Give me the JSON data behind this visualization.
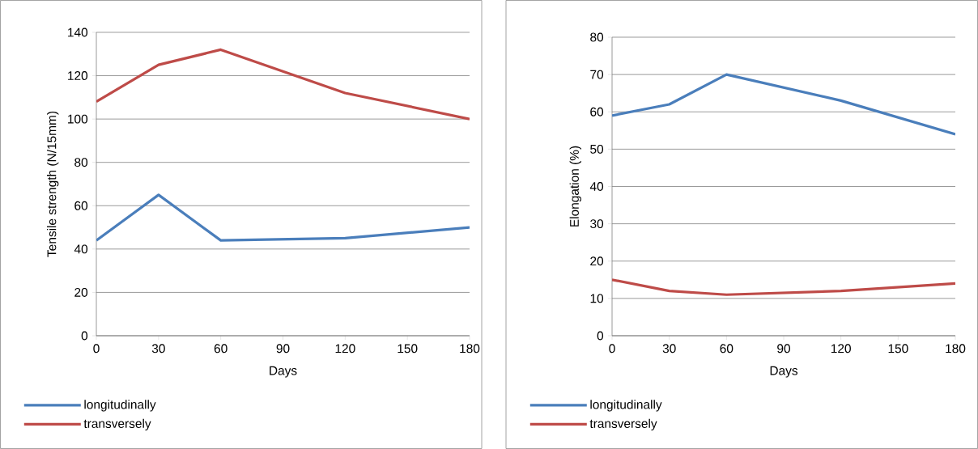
{
  "chart_data": [
    {
      "type": "line",
      "xlabel": "Days",
      "ylabel": "Tensile strength (N/15mm)",
      "x": [
        0,
        30,
        60,
        120,
        180
      ],
      "xlim": [
        0,
        180
      ],
      "xticks": [
        0,
        30,
        60,
        90,
        120,
        150,
        180
      ],
      "ylim": [
        0,
        140
      ],
      "yticks": [
        0,
        20,
        40,
        60,
        80,
        100,
        120,
        140
      ],
      "grid": "y",
      "legend": "bottom left",
      "series": [
        {
          "name": "longitudinally",
          "color": "#4a7ebb",
          "values": [
            44,
            65,
            44,
            45,
            50
          ]
        },
        {
          "name": "transversely",
          "color": "#be4b48",
          "values": [
            108,
            125,
            132,
            112,
            100
          ]
        }
      ]
    },
    {
      "type": "line",
      "xlabel": "Days",
      "ylabel": "Elongation (%)",
      "x": [
        0,
        30,
        60,
        120,
        180
      ],
      "xlim": [
        0,
        180
      ],
      "xticks": [
        0,
        30,
        60,
        90,
        120,
        150,
        180
      ],
      "ylim": [
        0,
        80
      ],
      "yticks": [
        0,
        10,
        20,
        30,
        40,
        50,
        60,
        70,
        80
      ],
      "grid": "y",
      "legend": "bottom left",
      "series": [
        {
          "name": "longitudinally",
          "color": "#4a7ebb",
          "values": [
            59,
            62,
            70,
            63,
            54
          ]
        },
        {
          "name": "transversely",
          "color": "#be4b48",
          "values": [
            15,
            12,
            11,
            12,
            14
          ]
        }
      ]
    }
  ]
}
